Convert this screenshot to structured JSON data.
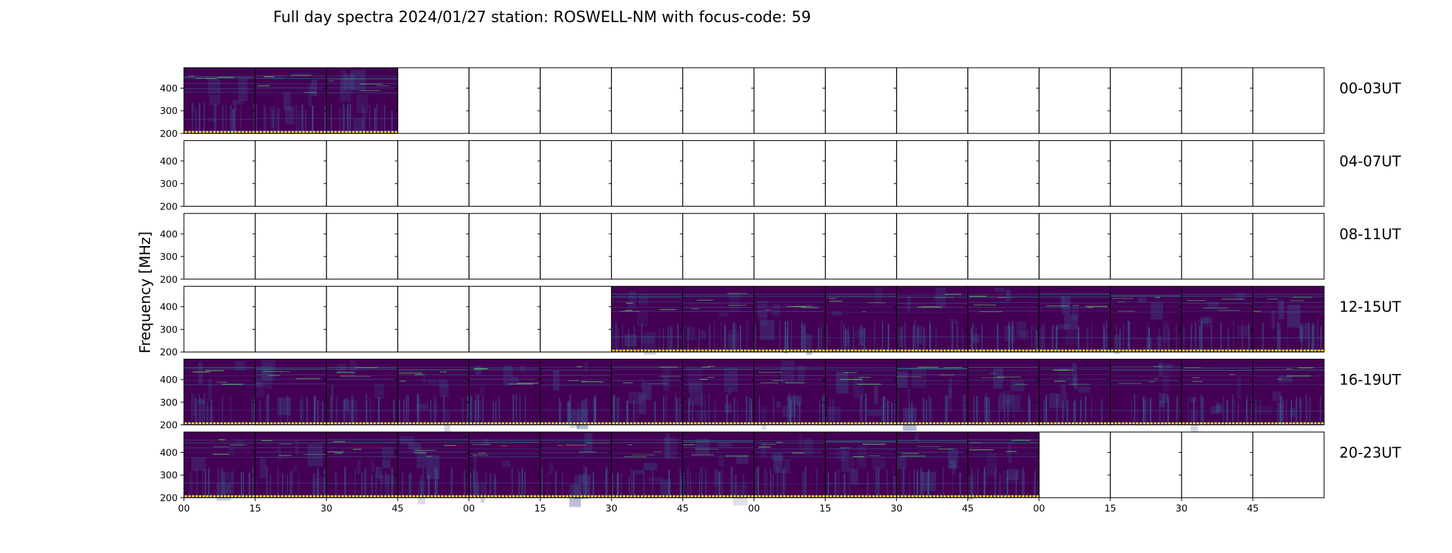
{
  "chart_data": {
    "type": "heatmap",
    "title": "Full day spectra 2024/01/27 station: ROSWELL-NM with focus-code: 59",
    "ylabel": "Frequency [MHz]",
    "xlabel": "",
    "ylim": [
      200,
      490
    ],
    "y_ticks": [
      200,
      300,
      400
    ],
    "x_tick_labels": [
      "00",
      "15",
      "30",
      "45",
      "00",
      "15",
      "30",
      "45",
      "00",
      "15",
      "30",
      "45",
      "00",
      "15",
      "30",
      "45"
    ],
    "panels_per_row": 16,
    "panel_minutes": 15,
    "colormap": [
      "#440154",
      "#3b528b",
      "#21918c",
      "#5ec962",
      "#fde725"
    ],
    "rows": [
      {
        "label": "00-03UT",
        "filled": [
          0,
          1,
          2
        ]
      },
      {
        "label": "04-07UT",
        "filled": []
      },
      {
        "label": "08-11UT",
        "filled": []
      },
      {
        "label": "12-15UT",
        "filled": [
          6,
          7,
          8,
          9,
          10,
          11,
          12,
          13,
          14,
          15
        ]
      },
      {
        "label": "16-19UT",
        "filled": [
          0,
          1,
          2,
          3,
          4,
          5,
          6,
          7,
          8,
          9,
          10,
          11,
          12,
          13,
          14,
          15
        ]
      },
      {
        "label": "20-23UT",
        "filled": [
          0,
          1,
          2,
          3,
          4,
          5,
          6,
          7,
          8,
          9,
          10,
          11
        ]
      }
    ]
  }
}
